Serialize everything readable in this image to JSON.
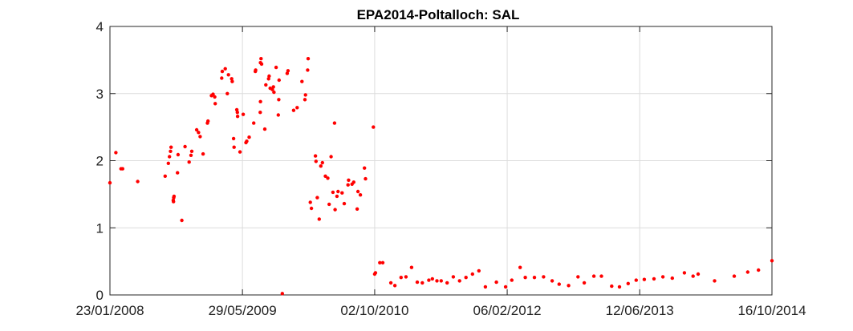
{
  "chart_data": {
    "type": "scatter",
    "title": "EPA2014-Poltalloch: SAL",
    "xlabel": "",
    "ylabel": "",
    "x_ticks": [
      "23/01/2008",
      "29/05/2009",
      "02/10/2010",
      "06/02/2012",
      "12/06/2013",
      "16/10/2014"
    ],
    "xlim": [
      "2008-01-23",
      "2014-10-16"
    ],
    "y_ticks": [
      "0",
      "1",
      "2",
      "3",
      "4"
    ],
    "ylim": [
      0,
      4
    ],
    "grid": true,
    "marker_color": "#ff0000",
    "series": [
      {
        "points": [
          [
            "2008-01-23",
            1.67
          ],
          [
            "2008-02-14",
            2.12
          ],
          [
            "2008-03-04",
            1.88
          ],
          [
            "2008-03-10",
            1.88
          ],
          [
            "2008-05-05",
            1.69
          ],
          [
            "2008-08-15",
            1.77
          ],
          [
            "2008-08-27",
            1.96
          ],
          [
            "2008-08-31",
            2.06
          ],
          [
            "2008-09-04",
            2.14
          ],
          [
            "2008-09-06",
            2.2
          ],
          [
            "2008-09-14",
            1.41
          ],
          [
            "2008-09-15",
            1.39
          ],
          [
            "2008-09-16",
            1.45
          ],
          [
            "2008-09-17",
            1.47
          ],
          [
            "2008-09-30",
            1.82
          ],
          [
            "2008-10-02",
            2.09
          ],
          [
            "2008-10-16",
            1.11
          ],
          [
            "2008-10-28",
            2.21
          ],
          [
            "2008-11-12",
            1.98
          ],
          [
            "2008-11-19",
            2.08
          ],
          [
            "2008-11-22",
            2.14
          ],
          [
            "2008-12-10",
            2.46
          ],
          [
            "2008-12-17",
            2.42
          ],
          [
            "2008-12-23",
            2.36
          ],
          [
            "2009-01-03",
            2.1
          ],
          [
            "2009-01-19",
            2.56
          ],
          [
            "2009-01-21",
            2.59
          ],
          [
            "2009-02-03",
            2.97
          ],
          [
            "2009-02-09",
            2.99
          ],
          [
            "2009-02-15",
            2.95
          ],
          [
            "2009-02-17",
            2.85
          ],
          [
            "2009-03-13",
            3.23
          ],
          [
            "2009-03-15",
            3.33
          ],
          [
            "2009-03-26",
            3.37
          ],
          [
            "2009-04-07",
            3.28
          ],
          [
            "2009-04-03",
            3.0
          ],
          [
            "2009-04-19",
            3.22
          ],
          [
            "2009-04-21",
            3.18
          ],
          [
            "2009-04-26",
            2.33
          ],
          [
            "2009-04-28",
            2.2
          ],
          [
            "2009-05-08",
            2.76
          ],
          [
            "2009-05-10",
            2.72
          ],
          [
            "2009-05-11",
            2.66
          ],
          [
            "2009-05-20",
            2.13
          ],
          [
            "2009-06-01",
            2.69
          ],
          [
            "2009-06-11",
            2.27
          ],
          [
            "2009-06-14",
            2.29
          ],
          [
            "2009-06-23",
            2.35
          ],
          [
            "2009-07-10",
            2.56
          ],
          [
            "2009-07-16",
            3.33
          ],
          [
            "2009-07-17",
            3.35
          ],
          [
            "2009-08-03",
            2.72
          ],
          [
            "2009-08-04",
            2.88
          ],
          [
            "2009-08-04",
            3.46
          ],
          [
            "2009-08-06",
            3.52
          ],
          [
            "2009-08-08",
            3.44
          ],
          [
            "2009-08-20",
            2.47
          ],
          [
            "2009-08-24",
            3.13
          ],
          [
            "2009-09-03",
            3.22
          ],
          [
            "2009-09-05",
            3.26
          ],
          [
            "2009-09-09",
            3.08
          ],
          [
            "2009-09-17",
            3.06
          ],
          [
            "2009-09-21",
            3.1
          ],
          [
            "2009-09-23",
            3.02
          ],
          [
            "2009-10-01",
            3.39
          ],
          [
            "2009-10-09",
            2.68
          ],
          [
            "2009-10-11",
            2.91
          ],
          [
            "2009-10-12",
            3.2
          ],
          [
            "2009-10-24",
            0.02
          ],
          [
            "2009-11-11",
            3.3
          ],
          [
            "2009-11-14",
            3.34
          ],
          [
            "2009-12-05",
            2.75
          ],
          [
            "2009-12-18",
            2.79
          ],
          [
            "2010-01-05",
            3.18
          ],
          [
            "2010-01-16",
            2.91
          ],
          [
            "2010-01-18",
            2.98
          ],
          [
            "2010-01-26",
            3.35
          ],
          [
            "2010-01-28",
            3.52
          ],
          [
            "2010-02-05",
            1.38
          ],
          [
            "2010-02-09",
            1.29
          ],
          [
            "2010-02-24",
            2.07
          ],
          [
            "2010-02-26",
            1.99
          ],
          [
            "2010-03-03",
            1.45
          ],
          [
            "2010-03-10",
            1.13
          ],
          [
            "2010-03-16",
            1.92
          ],
          [
            "2010-03-22",
            1.97
          ],
          [
            "2010-04-02",
            1.77
          ],
          [
            "2010-04-11",
            1.74
          ],
          [
            "2010-04-16",
            1.35
          ],
          [
            "2010-04-23",
            2.06
          ],
          [
            "2010-04-30",
            1.53
          ],
          [
            "2010-05-06",
            2.56
          ],
          [
            "2010-05-08",
            1.27
          ],
          [
            "2010-05-15",
            1.47
          ],
          [
            "2010-05-19",
            1.54
          ],
          [
            "2010-06-03",
            1.52
          ],
          [
            "2010-06-11",
            1.36
          ],
          [
            "2010-06-25",
            1.64
          ],
          [
            "2010-06-27",
            1.71
          ],
          [
            "2010-07-10",
            1.65
          ],
          [
            "2010-07-16",
            1.68
          ],
          [
            "2010-07-29",
            1.28
          ],
          [
            "2010-08-01",
            1.54
          ],
          [
            "2010-08-10",
            1.49
          ],
          [
            "2010-08-25",
            1.89
          ],
          [
            "2010-08-29",
            1.73
          ],
          [
            "2010-09-27",
            2.5
          ],
          [
            "2010-10-02",
            0.31
          ],
          [
            "2010-10-05",
            0.33
          ],
          [
            "2010-10-21",
            0.48
          ],
          [
            "2010-11-01",
            0.48
          ],
          [
            "2010-12-01",
            0.18
          ],
          [
            "2010-12-16",
            0.14
          ],
          [
            "2011-01-08",
            0.26
          ],
          [
            "2011-01-26",
            0.27
          ],
          [
            "2011-02-16",
            0.41
          ],
          [
            "2011-03-09",
            0.19
          ],
          [
            "2011-03-28",
            0.18
          ],
          [
            "2011-04-21",
            0.22
          ],
          [
            "2011-05-04",
            0.24
          ],
          [
            "2011-05-21",
            0.21
          ],
          [
            "2011-06-06",
            0.21
          ],
          [
            "2011-06-28",
            0.18
          ],
          [
            "2011-07-21",
            0.27
          ],
          [
            "2011-08-13",
            0.21
          ],
          [
            "2011-09-06",
            0.26
          ],
          [
            "2011-09-30",
            0.31
          ],
          [
            "2011-10-24",
            0.36
          ],
          [
            "2011-11-17",
            0.12
          ],
          [
            "2011-12-28",
            0.19
          ],
          [
            "2012-01-31",
            0.12
          ],
          [
            "2012-02-23",
            0.22
          ],
          [
            "2012-03-25",
            0.41
          ],
          [
            "2012-04-13",
            0.26
          ],
          [
            "2012-05-17",
            0.26
          ],
          [
            "2012-06-20",
            0.27
          ],
          [
            "2012-07-22",
            0.21
          ],
          [
            "2012-08-17",
            0.16
          ],
          [
            "2012-09-21",
            0.14
          ],
          [
            "2012-10-26",
            0.27
          ],
          [
            "2012-11-18",
            0.18
          ],
          [
            "2012-12-24",
            0.28
          ],
          [
            "2013-01-21",
            0.28
          ],
          [
            "2013-02-28",
            0.13
          ],
          [
            "2013-03-29",
            0.12
          ],
          [
            "2013-04-30",
            0.17
          ],
          [
            "2013-05-30",
            0.22
          ],
          [
            "2013-06-29",
            0.23
          ],
          [
            "2013-08-04",
            0.24
          ],
          [
            "2013-09-06",
            0.27
          ],
          [
            "2013-10-11",
            0.25
          ],
          [
            "2013-11-25",
            0.33
          ],
          [
            "2013-12-27",
            0.28
          ],
          [
            "2014-01-15",
            0.31
          ],
          [
            "2014-03-17",
            0.21
          ],
          [
            "2014-05-29",
            0.28
          ],
          [
            "2014-07-18",
            0.34
          ],
          [
            "2014-08-27",
            0.37
          ],
          [
            "2014-10-16",
            0.51
          ]
        ]
      }
    ]
  }
}
